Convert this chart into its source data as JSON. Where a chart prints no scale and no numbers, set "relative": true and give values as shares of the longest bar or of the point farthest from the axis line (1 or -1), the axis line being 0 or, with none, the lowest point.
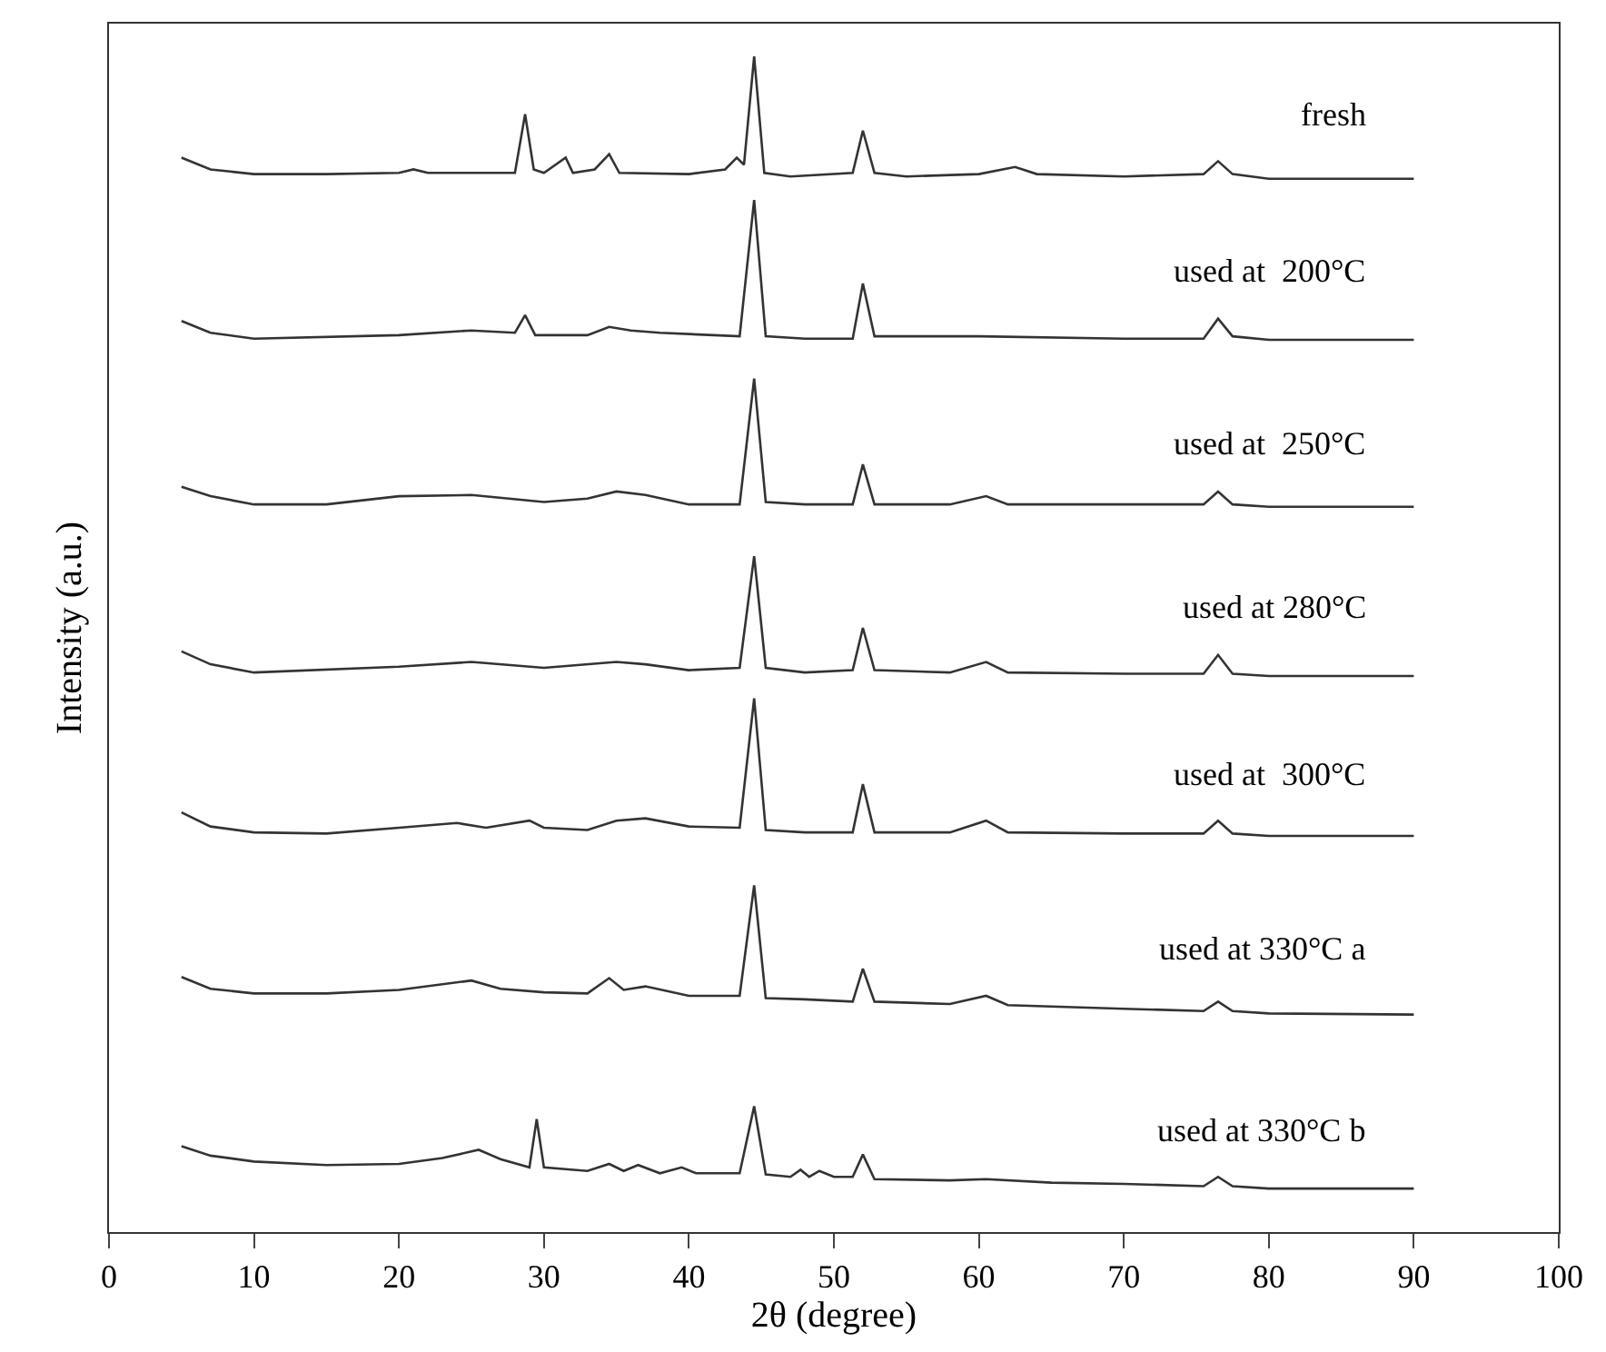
{
  "chart_data": {
    "type": "line",
    "relative": true,
    "xlabel": "2θ (degree)",
    "ylabel": "Intensity (a.u.)",
    "xlim": [
      0,
      100
    ],
    "xticks": [
      0,
      10,
      20,
      30,
      40,
      50,
      60,
      70,
      80,
      90,
      100
    ],
    "legend": false,
    "tick_labels": "x",
    "series": [
      {
        "name": "fresh",
        "color": "#333333",
        "x": [
          5,
          7,
          10,
          15,
          20,
          21,
          22,
          28,
          28.7,
          29.3,
          30,
          31.5,
          32,
          33.5,
          34.5,
          35.2,
          40,
          42.5,
          43.3,
          43.8,
          44.5,
          45.2,
          47,
          51.3,
          52,
          52.8,
          55,
          60,
          62.5,
          64,
          70,
          75.5,
          76.5,
          77.5,
          80,
          90
        ],
        "values": [
          0.914,
          0.904,
          0.9,
          0.9,
          0.901,
          0.904,
          0.901,
          0.901,
          0.951,
          0.904,
          0.901,
          0.914,
          0.901,
          0.904,
          0.917,
          0.901,
          0.9,
          0.904,
          0.914,
          0.908,
          1.0,
          0.901,
          0.898,
          0.901,
          0.937,
          0.901,
          0.898,
          0.9,
          0.906,
          0.9,
          0.898,
          0.9,
          0.911,
          0.9,
          0.896,
          0.896
        ]
      },
      {
        "name": "used at  200°C",
        "color": "#333333",
        "x": [
          5,
          7,
          10,
          20,
          25,
          28,
          28.7,
          29.4,
          33,
          34.5,
          36,
          38,
          43.5,
          44.5,
          45.3,
          48,
          51.3,
          52,
          52.8,
          60,
          70,
          75.5,
          76.5,
          77.5,
          80,
          90
        ],
        "values": [
          0.775,
          0.765,
          0.76,
          0.763,
          0.767,
          0.765,
          0.78,
          0.763,
          0.763,
          0.77,
          0.767,
          0.765,
          0.762,
          0.878,
          0.762,
          0.76,
          0.76,
          0.807,
          0.762,
          0.762,
          0.76,
          0.76,
          0.777,
          0.762,
          0.759,
          0.759
        ]
      },
      {
        "name": "used at  250°C",
        "color": "#333333",
        "x": [
          5,
          7,
          10,
          15,
          20,
          25,
          30,
          33,
          35,
          37,
          40,
          43.5,
          44.5,
          45.3,
          48,
          51.3,
          52,
          52.8,
          58,
          60.5,
          62,
          70,
          75.5,
          76.5,
          77.5,
          80,
          90
        ],
        "values": [
          0.634,
          0.626,
          0.619,
          0.619,
          0.626,
          0.627,
          0.621,
          0.624,
          0.63,
          0.627,
          0.619,
          0.619,
          0.726,
          0.621,
          0.619,
          0.619,
          0.653,
          0.619,
          0.619,
          0.626,
          0.619,
          0.619,
          0.619,
          0.63,
          0.619,
          0.617,
          0.617
        ]
      },
      {
        "name": "used at 280°C",
        "color": "#333333",
        "x": [
          5,
          7,
          10,
          20,
          25,
          30,
          35,
          37,
          40,
          43.5,
          44.5,
          45.3,
          48,
          51.3,
          52,
          52.8,
          58,
          60.5,
          62,
          70,
          75.5,
          76.5,
          77.5,
          80,
          90
        ],
        "values": [
          0.494,
          0.483,
          0.476,
          0.481,
          0.485,
          0.48,
          0.485,
          0.483,
          0.478,
          0.48,
          0.575,
          0.48,
          0.476,
          0.478,
          0.514,
          0.478,
          0.476,
          0.485,
          0.476,
          0.475,
          0.475,
          0.491,
          0.475,
          0.473,
          0.473
        ]
      },
      {
        "name": "used at  300°C",
        "color": "#333333",
        "x": [
          5,
          7,
          10,
          15,
          20,
          24,
          26,
          29,
          30,
          33,
          35,
          37,
          40,
          43.5,
          44.5,
          45.3,
          48,
          51.3,
          52,
          52.8,
          58,
          60.5,
          62,
          70,
          75.5,
          76.5,
          77.5,
          80,
          90
        ],
        "values": [
          0.357,
          0.345,
          0.34,
          0.339,
          0.344,
          0.348,
          0.344,
          0.35,
          0.344,
          0.342,
          0.35,
          0.352,
          0.345,
          0.344,
          0.454,
          0.342,
          0.34,
          0.34,
          0.381,
          0.34,
          0.34,
          0.35,
          0.34,
          0.339,
          0.339,
          0.35,
          0.339,
          0.337,
          0.337
        ]
      },
      {
        "name": "used at 330°C a",
        "color": "#333333",
        "x": [
          5,
          7,
          10,
          15,
          20,
          25,
          27,
          30,
          33,
          34.5,
          35.5,
          37,
          40,
          43.5,
          44.5,
          45.3,
          48,
          51.3,
          52,
          52.8,
          58,
          60.5,
          62,
          70,
          75.5,
          76.5,
          77.5,
          80,
          90
        ],
        "values": [
          0.217,
          0.207,
          0.203,
          0.203,
          0.206,
          0.214,
          0.207,
          0.204,
          0.203,
          0.216,
          0.206,
          0.209,
          0.201,
          0.201,
          0.295,
          0.199,
          0.198,
          0.196,
          0.224,
          0.196,
          0.194,
          0.201,
          0.193,
          0.19,
          0.188,
          0.196,
          0.188,
          0.186,
          0.185
        ]
      },
      {
        "name": "used at 330°C b",
        "color": "#333333",
        "x": [
          5,
          7,
          10,
          15,
          20,
          23,
          25.5,
          27,
          29,
          29.5,
          30,
          33,
          34.5,
          35.5,
          36.5,
          38,
          39.5,
          40.5,
          43.5,
          44.5,
          45.3,
          47,
          47.7,
          48.3,
          49,
          50,
          51.3,
          52,
          52.8,
          58,
          60.5,
          65,
          70,
          75.5,
          76.5,
          77.5,
          80,
          90
        ],
        "values": [
          0.073,
          0.065,
          0.06,
          0.057,
          0.058,
          0.063,
          0.07,
          0.062,
          0.055,
          0.096,
          0.055,
          0.052,
          0.058,
          0.052,
          0.057,
          0.05,
          0.055,
          0.05,
          0.05,
          0.107,
          0.049,
          0.047,
          0.053,
          0.047,
          0.052,
          0.047,
          0.047,
          0.066,
          0.045,
          0.044,
          0.045,
          0.042,
          0.041,
          0.039,
          0.047,
          0.039,
          0.037,
          0.037
        ]
      }
    ]
  }
}
